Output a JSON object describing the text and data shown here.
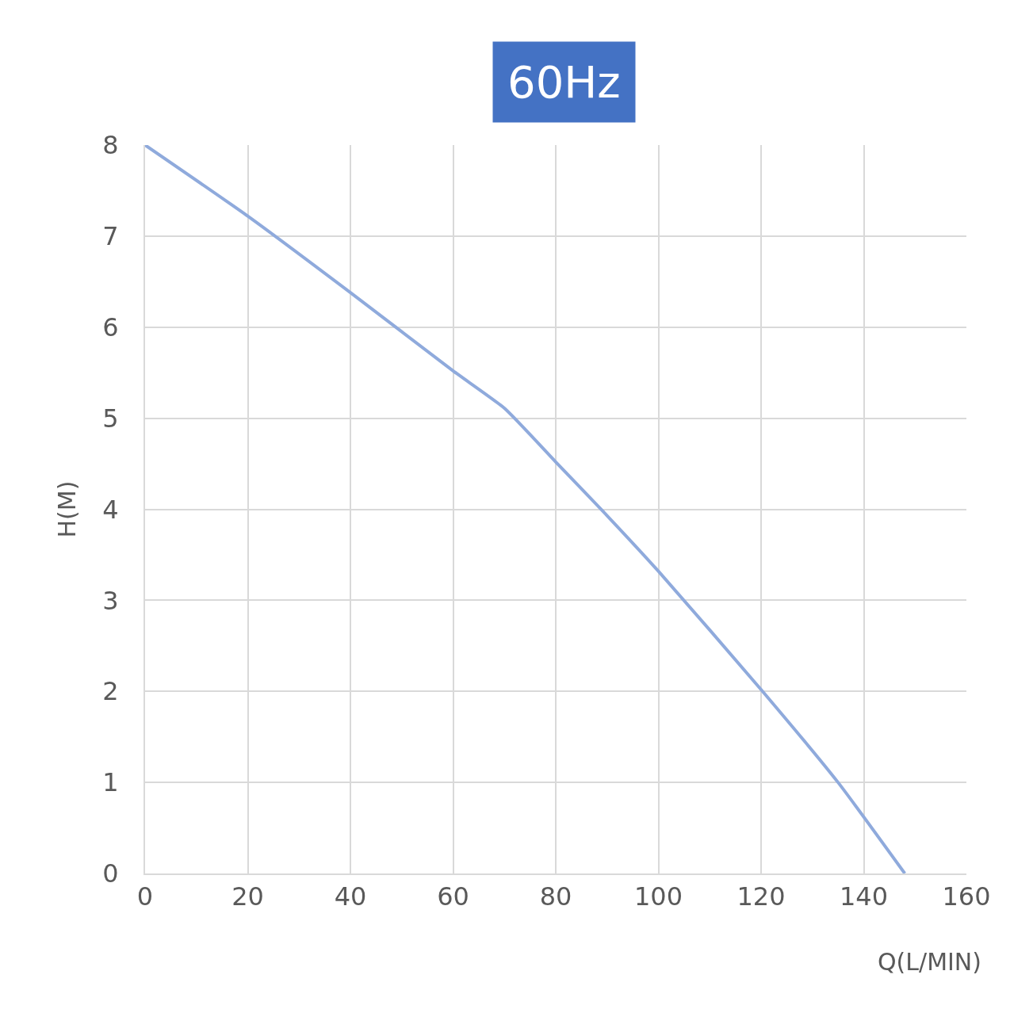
{
  "chart_data": {
    "type": "line",
    "title": "60Hz",
    "xlabel": "Q(L/MIN)",
    "ylabel": "H(M)",
    "x": [
      0,
      20,
      40,
      60,
      70,
      80,
      90,
      100,
      120,
      135,
      148
    ],
    "series": [
      {
        "color": "#8faadc",
        "values": [
          8,
          7.22,
          6.38,
          5.52,
          5.11,
          4.52,
          3.93,
          3.32,
          2.02,
          1.0,
          0
        ]
      }
    ],
    "xlim": [
      0,
      160
    ],
    "xticks": [
      0,
      20,
      40,
      60,
      80,
      100,
      120,
      140,
      160
    ],
    "ylim": [
      0,
      8
    ],
    "yticks": [
      0,
      1,
      2,
      3,
      4,
      5,
      6,
      7,
      8
    ],
    "grid": true,
    "marker": "none",
    "line_style": "solid",
    "legend": false
  }
}
